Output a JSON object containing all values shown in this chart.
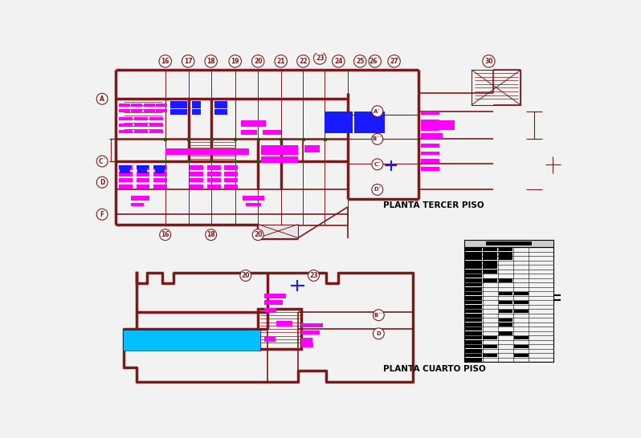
{
  "bg": "#f2f2f2",
  "wc": "#7a1a1a",
  "mc": "#ff00ff",
  "bc": "#1a1aff",
  "cc": "#00bfff",
  "gc": "#006600",
  "kc": "#000000",
  "title1": "PLANTA TERCER PISO",
  "title2": "PLANTA CUARTO PISO",
  "top_circles": [
    [
      "16",
      135,
      14
    ],
    [
      "17",
      172,
      14
    ],
    [
      "18",
      209,
      14
    ],
    [
      "19",
      248,
      14
    ],
    [
      "20",
      285,
      14
    ],
    [
      "21",
      322,
      14
    ],
    [
      "22",
      358,
      14
    ],
    [
      "23",
      385,
      9
    ],
    [
      "24",
      415,
      14
    ],
    [
      "25",
      450,
      14
    ],
    [
      "26´",
      474,
      14
    ],
    [
      "27",
      505,
      14
    ],
    [
      "30",
      658,
      14
    ]
  ],
  "bot_circles_3rd": [
    [
      "16",
      135,
      295
    ],
    [
      "18",
      209,
      295
    ],
    [
      "20",
      285,
      295
    ]
  ],
  "left_circles": [
    [
      "A",
      33,
      75
    ],
    [
      "C´",
      33,
      176
    ],
    [
      "D",
      33,
      210
    ],
    [
      "F",
      33,
      262
    ]
  ],
  "right_circles": [
    [
      "A´",
      478,
      95
    ],
    [
      "B´´",
      478,
      140
    ],
    [
      "C´",
      478,
      181
    ],
    [
      "D´",
      478,
      222
    ]
  ],
  "floor4_circles": [
    [
      "20",
      265,
      361
    ],
    [
      "23",
      375,
      361
    ]
  ],
  "floor4_right_labels": [
    [
      "B´´",
      480,
      425
    ],
    [
      "D",
      480,
      455
    ]
  ]
}
